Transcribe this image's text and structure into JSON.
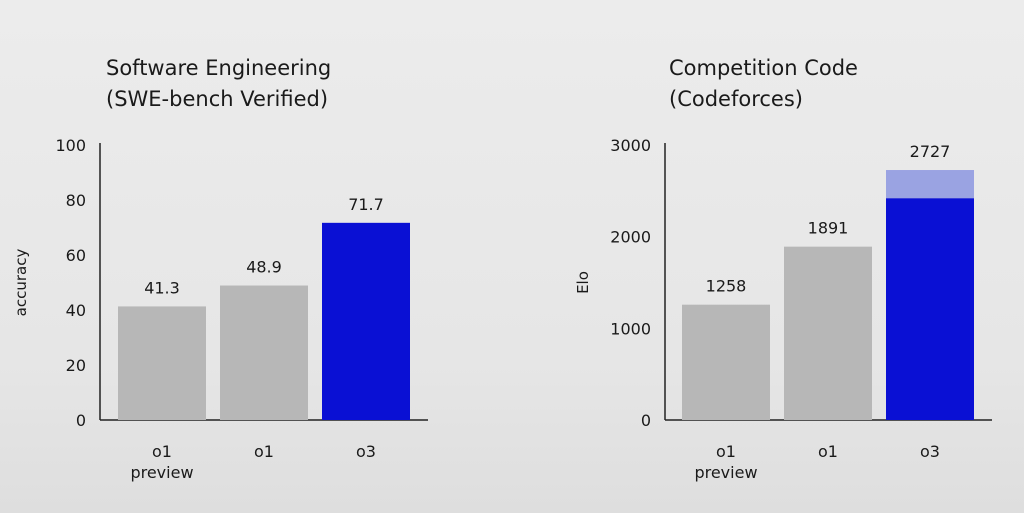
{
  "chart_data": [
    {
      "type": "bar",
      "title": "Software Engineering",
      "subtitle": "(SWE-bench Verified)",
      "ylabel": "accuracy",
      "xlabel": "",
      "ylim": [
        0,
        100
      ],
      "yticks": [
        0,
        20,
        40,
        60,
        80,
        100
      ],
      "categories": [
        [
          "o1",
          "preview"
        ],
        [
          "o1"
        ],
        [
          "o3"
        ]
      ],
      "values": [
        41.3,
        48.9,
        71.7
      ],
      "value_labels": [
        "41.3",
        "48.9",
        "71.7"
      ],
      "colors": [
        "#b7b7b7",
        "#b7b7b7",
        "#0a10d4"
      ]
    },
    {
      "type": "bar",
      "title": "Competition Code",
      "subtitle": "(Codeforces)",
      "ylabel": "Elo",
      "xlabel": "",
      "ylim": [
        0,
        3000
      ],
      "yticks": [
        0,
        1000,
        2000,
        3000
      ],
      "categories": [
        [
          "o1",
          "preview"
        ],
        [
          "o1"
        ],
        [
          "o3"
        ]
      ],
      "values": [
        1258,
        1891,
        2727
      ],
      "value_labels": [
        "1258",
        "1891",
        "2727"
      ],
      "colors": [
        "#b7b7b7",
        "#b7b7b7",
        "#0a10d4"
      ],
      "stack_split": [
        null,
        null,
        2420
      ],
      "stack_top_color": "#9aa3e2"
    }
  ]
}
